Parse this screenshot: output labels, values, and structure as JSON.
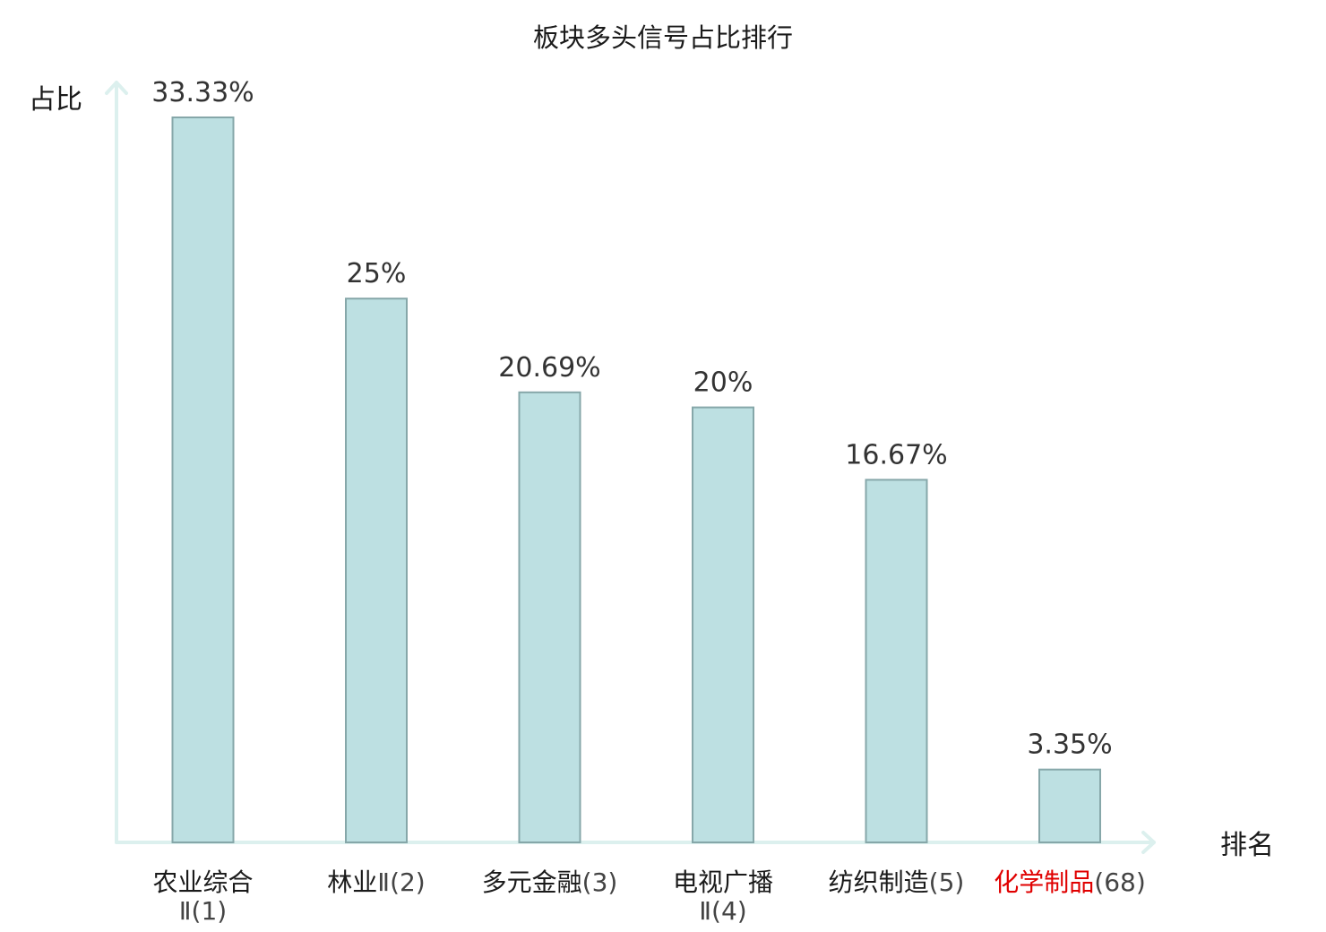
{
  "chart_data": {
    "type": "bar",
    "title": "板块多头信号占比排行",
    "xlabel": "排名",
    "ylabel": "占比",
    "ylim": [
      0,
      33.33
    ],
    "grid": false,
    "legend": "none",
    "categories": [
      {
        "name": "农业综合",
        "code": "Ⅱ(1)",
        "wrap": true
      },
      {
        "name": "林业",
        "code": "Ⅱ(2)",
        "wrap": false
      },
      {
        "name": "多元金融",
        "code": "(3)",
        "wrap": false
      },
      {
        "name": "电视广播",
        "code": "Ⅱ(4)",
        "wrap": true
      },
      {
        "name": "纺织制造",
        "code": "(5)",
        "wrap": false
      },
      {
        "name": "化学制品",
        "code": "(68)",
        "wrap": false,
        "highlight": true
      }
    ],
    "values": [
      33.33,
      25,
      20.69,
      20,
      16.67,
      3.35
    ],
    "value_labels": [
      "33.33%",
      "25%",
      "20.69%",
      "20%",
      "16.67%",
      "3.35%"
    ]
  },
  "colors": {
    "bar_fill": "#bde0e2",
    "bar_stroke": "#86a7a9",
    "axis": "#dcf0ee",
    "highlight_text": "#e00000",
    "text": "#1a1a1a"
  }
}
